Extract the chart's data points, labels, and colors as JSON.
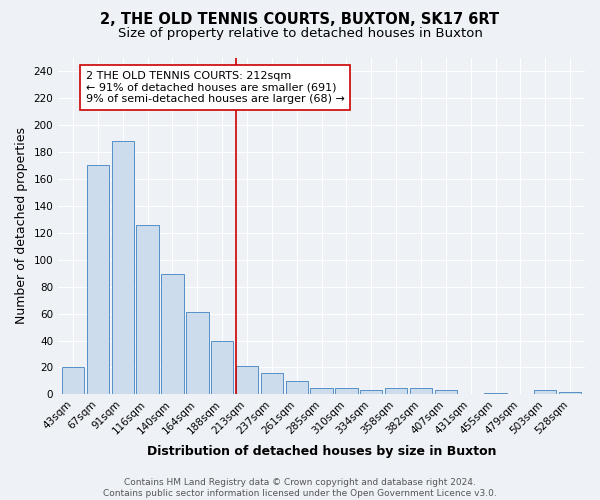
{
  "title": "2, THE OLD TENNIS COURTS, BUXTON, SK17 6RT",
  "subtitle": "Size of property relative to detached houses in Buxton",
  "xlabel": "Distribution of detached houses by size in Buxton",
  "ylabel": "Number of detached properties",
  "categories": [
    "43sqm",
    "67sqm",
    "91sqm",
    "116sqm",
    "140sqm",
    "164sqm",
    "188sqm",
    "213sqm",
    "237sqm",
    "261sqm",
    "285sqm",
    "310sqm",
    "334sqm",
    "358sqm",
    "382sqm",
    "407sqm",
    "431sqm",
    "455sqm",
    "479sqm",
    "503sqm",
    "528sqm"
  ],
  "values": [
    20,
    170,
    188,
    126,
    89,
    61,
    40,
    21,
    16,
    10,
    5,
    5,
    3,
    5,
    5,
    3,
    0,
    1,
    0,
    3,
    2
  ],
  "bar_color": "#ccdcec",
  "bar_edge_color": "#5590c8",
  "reference_line_color": "#cc0000",
  "annotation_line1": "2 THE OLD TENNIS COURTS: 212sqm",
  "annotation_line2": "← 91% of detached houses are smaller (691)",
  "annotation_line3": "9% of semi-detached houses are larger (68) →",
  "annotation_box_color": "white",
  "annotation_box_edge_color": "#cc0000",
  "ylim": [
    0,
    250
  ],
  "yticks": [
    0,
    20,
    40,
    60,
    80,
    100,
    120,
    140,
    160,
    180,
    200,
    220,
    240
  ],
  "footer_text": "Contains HM Land Registry data © Crown copyright and database right 2024.\nContains public sector information licensed under the Open Government Licence v3.0.",
  "background_color": "#eef2f7",
  "grid_color": "#ffffff",
  "title_fontsize": 10.5,
  "subtitle_fontsize": 9.5,
  "axis_label_fontsize": 9,
  "tick_fontsize": 7.5,
  "annotation_fontsize": 8,
  "footer_fontsize": 6.5
}
